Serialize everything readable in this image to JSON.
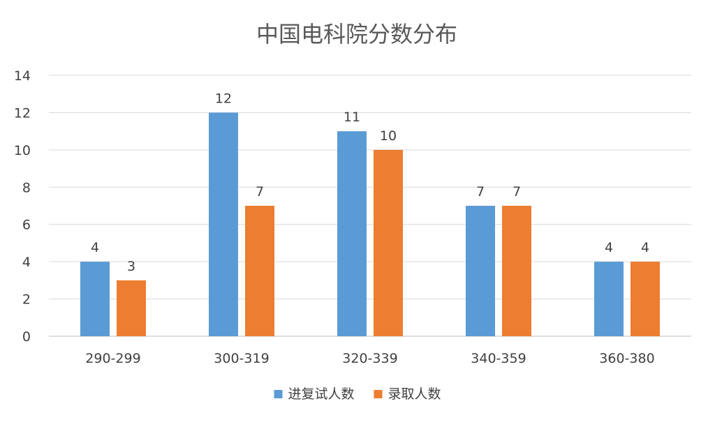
{
  "chart_data": {
    "type": "bar",
    "title": "中国电科院分数分布",
    "xlabel": "",
    "ylabel": "",
    "categories": [
      "290-299",
      "300-319",
      "320-339",
      "340-359",
      "360-380"
    ],
    "series": [
      {
        "name": "进复试人数",
        "values": [
          4,
          12,
          11,
          7,
          4
        ],
        "color": "#5b9bd5"
      },
      {
        "name": "录取人数",
        "values": [
          3,
          7,
          10,
          7,
          4
        ],
        "color": "#ed7d31"
      }
    ],
    "ylim": [
      0,
      14
    ],
    "yticks": [
      "0",
      "2",
      "4",
      "6",
      "8",
      "10",
      "12",
      "14"
    ],
    "grid": true,
    "legend_position": "bottom",
    "data_labels": true
  }
}
